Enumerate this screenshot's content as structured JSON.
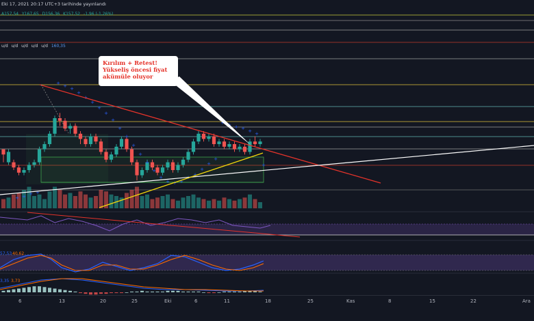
{
  "header": {
    "date_line": "Eki 17, 2021 20:17 UTC+3 tarihinde yayınlandı",
    "ohlc": [
      "A157,54",
      "Y167,65",
      "D156,36",
      "K157,52",
      "-1,96 (-1,26%)"
    ],
    "ma_labels": [
      "u/d",
      "u/d",
      "u/d",
      "u/d",
      "u/d"
    ],
    "ma_value": "160,35"
  },
  "annotation": {
    "line1": "Kırılım + Retest!",
    "line2": "Yükseliş öncesi fiyat",
    "line3": "akümüle oluyor"
  },
  "oscillators": {
    "stoch_k": "57,53",
    "stoch_d": "40,62",
    "macd_a": "3,35",
    "macd_b": "3,73"
  },
  "x_axis": {
    "labels": [
      "6",
      "13",
      "20",
      "25",
      "Eki",
      "6",
      "11",
      "18",
      "25",
      "Kas",
      "8",
      "15",
      "22",
      "Ara"
    ]
  },
  "colors": {
    "background": "#131722",
    "up": "#26a69a",
    "down": "#ef5350",
    "resistance_line": "#e5332a",
    "trend_white": "#ffffff",
    "trend_yellow": "#f5d90a",
    "psar": "#2962ff",
    "rsi_band": "#7e57c2",
    "callout_text": "#e5332a"
  },
  "chart_data": {
    "type": "candlestick",
    "candles": [
      [
        6,
        2,
        4,
        -4
      ],
      [
        -4,
        4,
        6,
        -6
      ],
      [
        -4,
        -8,
        -2,
        -10
      ],
      [
        -8,
        -12,
        -6,
        -14
      ],
      [
        -12,
        -10,
        -8,
        -14
      ],
      [
        -10,
        -6,
        -4,
        -12
      ],
      [
        -6,
        -4,
        -2,
        -8
      ],
      [
        -4,
        6,
        8,
        -6
      ],
      [
        6,
        10,
        12,
        4
      ],
      [
        10,
        18,
        20,
        8
      ],
      [
        18,
        30,
        32,
        16
      ],
      [
        30,
        28,
        34,
        24
      ],
      [
        28,
        22,
        30,
        20
      ],
      [
        22,
        24,
        26,
        18
      ],
      [
        24,
        18,
        26,
        16
      ],
      [
        18,
        14,
        20,
        10
      ],
      [
        14,
        10,
        16,
        8
      ],
      [
        10,
        16,
        18,
        8
      ],
      [
        16,
        12,
        18,
        10
      ],
      [
        12,
        4,
        14,
        2
      ],
      [
        4,
        -2,
        6,
        -4
      ],
      [
        -2,
        2,
        4,
        -4
      ],
      [
        2,
        8,
        10,
        0
      ],
      [
        8,
        14,
        16,
        6
      ],
      [
        14,
        6,
        16,
        4
      ],
      [
        6,
        -4,
        8,
        -6
      ],
      [
        -4,
        -14,
        -2,
        -18
      ],
      [
        -14,
        -10,
        -8,
        -16
      ],
      [
        -10,
        -4,
        -2,
        -12
      ],
      [
        -4,
        -8,
        -2,
        -10
      ],
      [
        -8,
        -12,
        -6,
        -14
      ],
      [
        -12,
        -8,
        -6,
        -14
      ],
      [
        -8,
        -4,
        -2,
        -10
      ],
      [
        -4,
        -10,
        -2,
        -12
      ],
      [
        -10,
        -6,
        -4,
        -12
      ],
      [
        -6,
        -2,
        0,
        -8
      ],
      [
        -2,
        4,
        6,
        -4
      ],
      [
        4,
        12,
        14,
        2
      ],
      [
        12,
        18,
        20,
        10
      ],
      [
        18,
        14,
        20,
        12
      ],
      [
        14,
        16,
        18,
        12
      ],
      [
        16,
        10,
        18,
        8
      ],
      [
        10,
        12,
        14,
        8
      ],
      [
        12,
        8,
        14,
        6
      ],
      [
        8,
        10,
        12,
        6
      ],
      [
        10,
        6,
        12,
        4
      ],
      [
        6,
        8,
        10,
        4
      ],
      [
        8,
        4,
        10,
        2
      ],
      [
        4,
        12,
        14,
        2
      ],
      [
        12,
        10,
        16,
        8
      ],
      [
        10,
        12,
        14,
        8
      ]
    ],
    "volume": [
      30,
      35,
      45,
      50,
      60,
      70,
      40,
      45,
      30,
      55,
      70,
      60,
      45,
      50,
      40,
      55,
      45,
      35,
      40,
      60,
      55,
      45,
      40,
      35,
      50,
      60,
      70,
      40,
      45,
      30,
      35,
      40,
      45,
      30,
      25,
      35,
      40,
      45,
      35,
      30,
      25,
      30,
      25,
      35,
      30,
      25,
      30,
      35,
      45,
      30,
      20
    ]
  }
}
